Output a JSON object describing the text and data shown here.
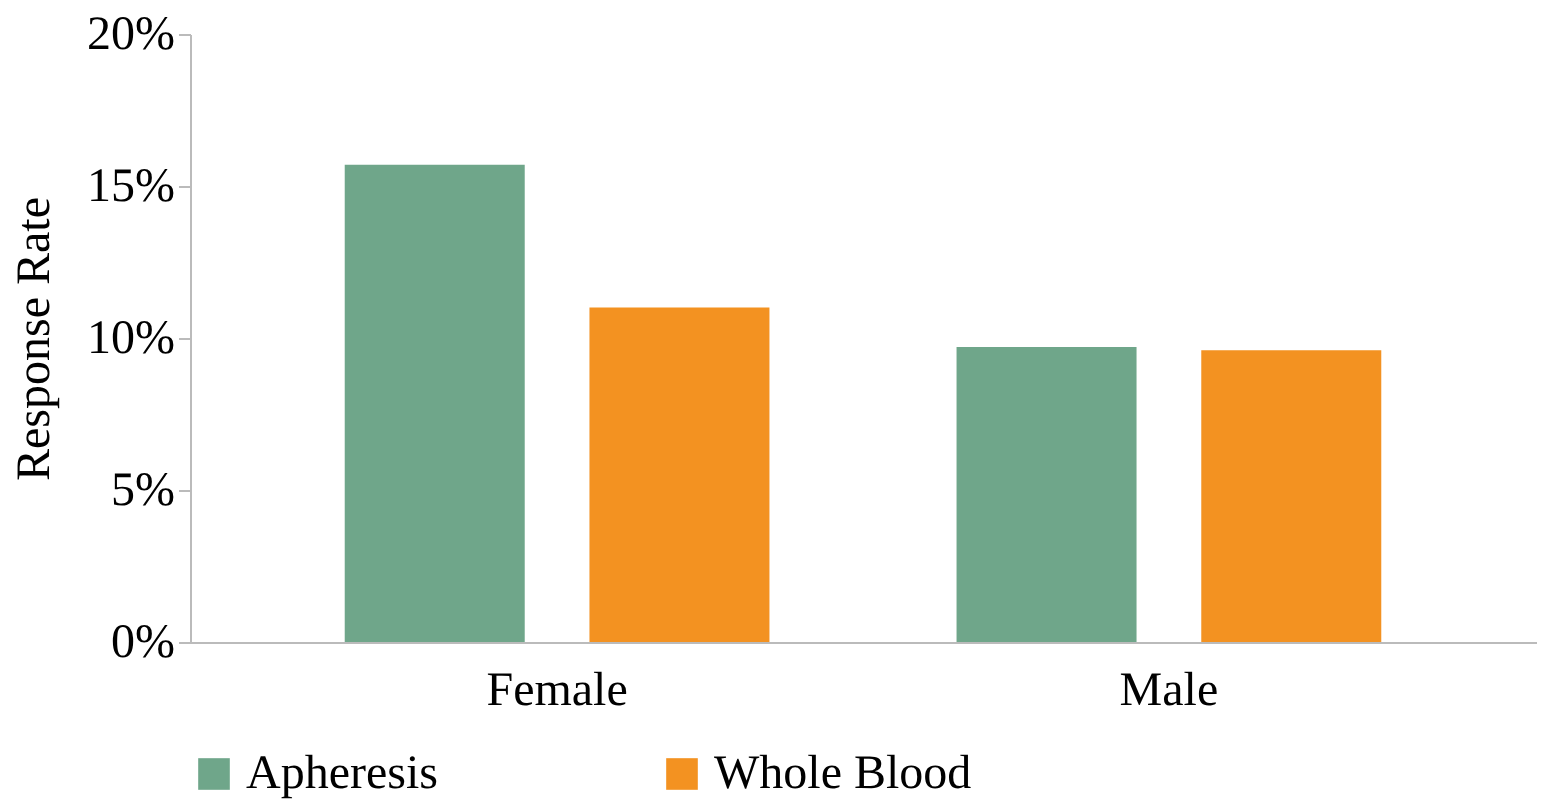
{
  "chart_data": {
    "type": "bar",
    "ylabel": "Response Rate",
    "categories": [
      "Female",
      "Male"
    ],
    "series": [
      {
        "name": "Apheresis",
        "color": "#6fa68a",
        "values": [
          15.7,
          9.7
        ]
      },
      {
        "name": "Whole Blood",
        "color": "#f39221",
        "values": [
          11.0,
          9.6
        ]
      }
    ],
    "ylim": [
      0,
      20
    ],
    "yticks": [
      {
        "value": 0,
        "label": "0%"
      },
      {
        "value": 5,
        "label": "5%"
      },
      {
        "value": 10,
        "label": "10%"
      },
      {
        "value": 15,
        "label": "15%"
      },
      {
        "value": 20,
        "label": "20%"
      }
    ],
    "grid": false,
    "legend": "bottom"
  }
}
